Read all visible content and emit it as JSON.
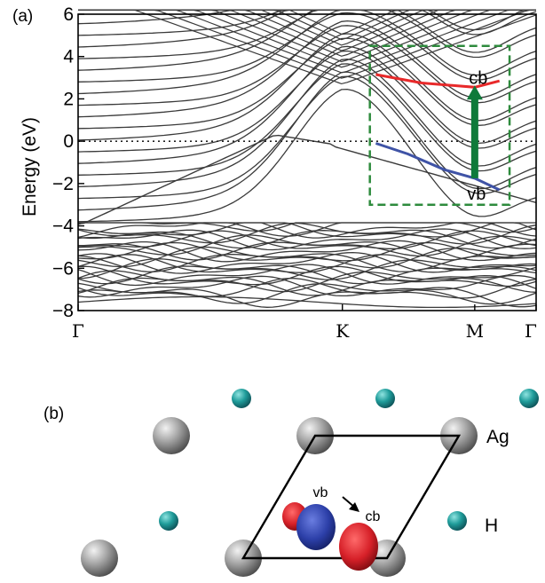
{
  "panel_a_label": "(a)",
  "panel_b_label": "(b)",
  "chart_data": {
    "type": "line",
    "ylabel": "Energy (eV)",
    "ylim": [
      -8,
      6
    ],
    "yticks": [
      6,
      4,
      2,
      0,
      -2,
      -4,
      -6,
      -8
    ],
    "ytick_labels": [
      "6",
      "4",
      "2",
      "0",
      "−2",
      "−4",
      "−6",
      "−8"
    ],
    "x": [
      0,
      0.577,
      0.866,
      1.0
    ],
    "xtick_labels": [
      "Γ",
      "K",
      "M",
      "Γ"
    ],
    "fermi_level": 0,
    "grid": false,
    "series": [
      {
        "label": "cb",
        "color": "#e8292a",
        "points": [
          [
            0.65,
            3.15
          ],
          [
            0.75,
            2.75
          ],
          [
            0.866,
            2.55
          ],
          [
            0.92,
            2.85
          ]
        ]
      },
      {
        "label": "vb",
        "color": "#3f53a6",
        "points": [
          [
            0.65,
            -0.1
          ],
          [
            0.72,
            -0.6
          ],
          [
            0.8,
            -1.35
          ],
          [
            0.866,
            -1.75
          ],
          [
            0.92,
            -2.3
          ]
        ]
      }
    ],
    "annotations": [
      {
        "text": "cb",
        "x": 0.866,
        "y": 2.55
      },
      {
        "text": "vb",
        "x": 0.866,
        "y": -1.75
      }
    ],
    "transition": {
      "x": 0.866,
      "from": -1.75,
      "to": 2.55,
      "color": "#0f7a3a"
    },
    "highlight_box": {
      "x": [
        0.637,
        0.942
      ],
      "y": [
        -3.0,
        4.5
      ],
      "color": "#2e8b3d"
    },
    "band_color": "#3a3a3a"
  },
  "structure": {
    "atom_labels": {
      "ag": "Ag",
      "h": "H"
    },
    "orbital_labels": {
      "vb": "vb",
      "cb": "cb"
    },
    "colors": {
      "ag": "#888888",
      "h": "#1a9a9a",
      "vb": "#2c3fa8",
      "cb": "#d62028"
    }
  }
}
